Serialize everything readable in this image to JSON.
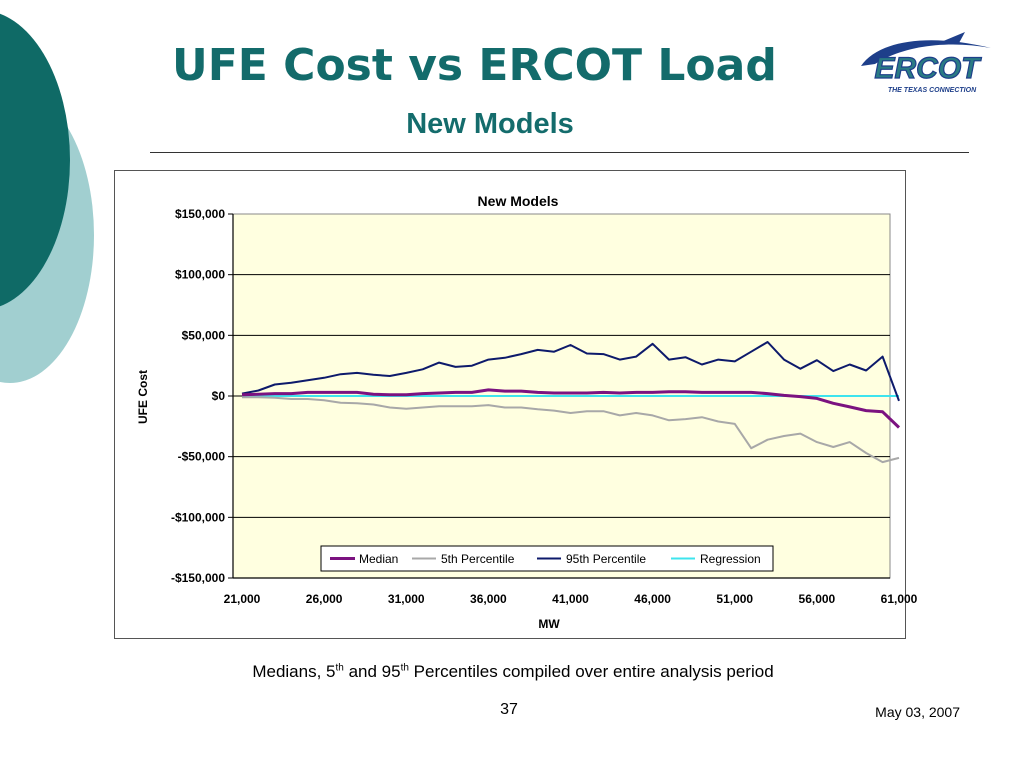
{
  "slide": {
    "title": "UFE Cost vs ERCOT Load",
    "subtitle": "New Models",
    "caption_parts": [
      "Medians, 5",
      "th",
      " and 95",
      "th",
      " Percentiles compiled over entire analysis period"
    ],
    "page_number": "37",
    "date": "May 03, 2007",
    "logo_text": "ERCOT",
    "logo_tagline": "THE TEXAS CONNECTION"
  },
  "colors": {
    "title": "#136b6b",
    "deco_dark": "#0f6a66",
    "deco_light": "#a1cfd0",
    "plot_bg": "#ffffe0",
    "median": "#7b1280",
    "p5": "#a8a8a8",
    "p95": "#0d1a6b",
    "regression": "#3ee4ee"
  },
  "chart_data": {
    "type": "line",
    "title": "New Models",
    "xlabel": "MW",
    "ylabel": "UFE Cost",
    "xlim": [
      21000,
      61000
    ],
    "ylim": [
      -150000,
      150000
    ],
    "x_ticks": [
      21000,
      26000,
      31000,
      36000,
      41000,
      46000,
      51000,
      56000,
      61000
    ],
    "x_tick_labels": [
      "21,000",
      "26,000",
      "31,000",
      "36,000",
      "41,000",
      "46,000",
      "51,000",
      "56,000",
      "61,000"
    ],
    "y_ticks": [
      150000,
      100000,
      50000,
      0,
      -50000,
      -100000,
      -150000
    ],
    "y_tick_labels": [
      "$150,000",
      "$100,000",
      "$50,000",
      "$0",
      "-$50,000",
      "-$100,000",
      "-$150,000"
    ],
    "grid": "horizontal",
    "legend_position": "bottom-center",
    "x": [
      21000,
      22000,
      23000,
      24000,
      25000,
      26000,
      27000,
      28000,
      29000,
      30000,
      31000,
      32000,
      33000,
      34000,
      35000,
      36000,
      37000,
      38000,
      39000,
      40000,
      41000,
      42000,
      43000,
      44000,
      45000,
      46000,
      47000,
      48000,
      49000,
      50000,
      51000,
      52000,
      53000,
      54000,
      55000,
      56000,
      57000,
      58000,
      59000,
      60000,
      61000
    ],
    "series": [
      {
        "name": "Median",
        "color": "#7b1280",
        "values": [
          1000,
          1500,
          2000,
          2000,
          3000,
          3000,
          3000,
          3000,
          1500,
          1000,
          1000,
          2000,
          2500,
          3000,
          3000,
          5000,
          4000,
          4000,
          3000,
          2500,
          2500,
          2500,
          3000,
          2500,
          3000,
          3000,
          3500,
          3500,
          3000,
          3000,
          3000,
          3000,
          2000,
          500,
          -500,
          -2000,
          -6000,
          -9000,
          -12000,
          -13000,
          -26000
        ]
      },
      {
        "name": "5th Percentile",
        "color": "#a8a8a8",
        "values": [
          -1000,
          -1000,
          -1500,
          -2500,
          -2500,
          -3500,
          -5500,
          -6000,
          -7000,
          -9500,
          -10500,
          -9500,
          -8500,
          -8500,
          -8500,
          -7500,
          -9500,
          -9500,
          -11000,
          -12000,
          -14000,
          -12500,
          -12500,
          -16000,
          -14000,
          -16000,
          -20000,
          -19000,
          -17500,
          -21000,
          -23000,
          -43000,
          -36000,
          -33000,
          -31000,
          -38000,
          -42000,
          -38000,
          -47000,
          -54500,
          -51000
        ]
      },
      {
        "name": "95th Percentile",
        "color": "#0d1a6b",
        "values": [
          2000,
          4500,
          9500,
          11000,
          13000,
          15000,
          18000,
          19000,
          17500,
          16500,
          19000,
          22000,
          27500,
          24000,
          25000,
          30000,
          31500,
          34500,
          38000,
          36500,
          42000,
          35000,
          34500,
          30000,
          32500,
          43000,
          30000,
          32000,
          26000,
          30000,
          28500,
          36500,
          44500,
          30000,
          22500,
          29500,
          20500,
          26000,
          21000,
          32500,
          -4000
        ]
      },
      {
        "name": "Regression",
        "color": "#3ee4ee",
        "values": [
          0,
          0,
          0,
          0,
          0,
          0,
          0,
          0,
          0,
          0,
          0,
          0,
          0,
          0,
          0,
          0,
          0,
          0,
          0,
          0,
          0,
          0,
          0,
          0,
          0,
          0,
          0,
          0,
          0,
          0,
          0,
          0,
          0,
          0,
          0,
          0,
          0,
          0,
          0,
          0,
          0
        ]
      }
    ]
  }
}
